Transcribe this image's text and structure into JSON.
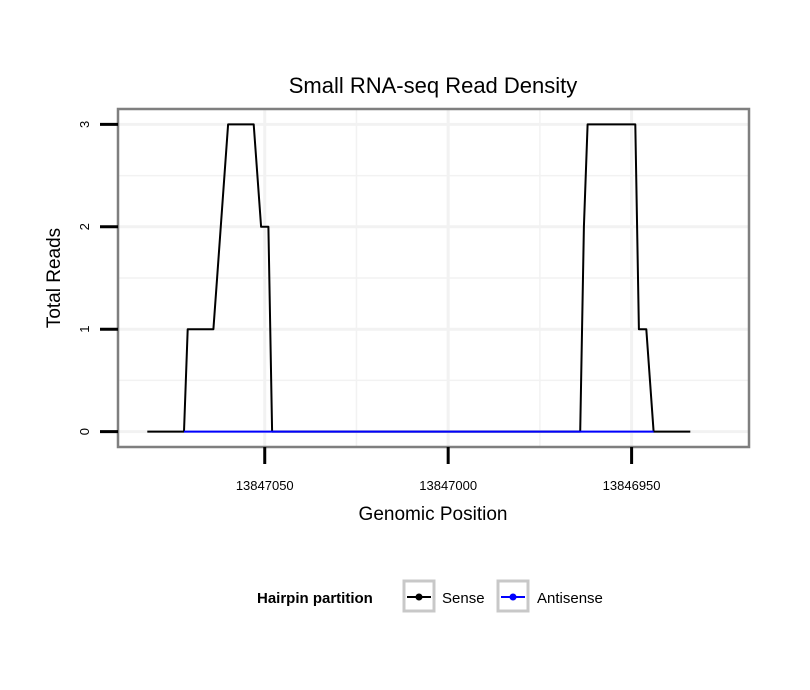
{
  "chart_data": {
    "type": "line",
    "title": "Small RNA-seq Read Density",
    "xlabel": "Genomic Position",
    "ylabel": "Total Reads",
    "x_reversed": true,
    "xlim": [
      13847090,
      13846918
    ],
    "ylim": [
      -0.15,
      3.15
    ],
    "x_ticks": [
      13847050,
      13847000,
      13846950
    ],
    "y_ticks": [
      0,
      1,
      2,
      3
    ],
    "x_minor_gridlines": [
      13847025,
      13846975
    ],
    "y_minor_gridlines": [
      0.5,
      1.5,
      2.5
    ],
    "grid": true,
    "series": [
      {
        "name": "Sense",
        "color": "#000000",
        "x": [
          13847082,
          13847072,
          13847071,
          13847064,
          13847063,
          13847060,
          13847059,
          13847053,
          13847051,
          13847049,
          13847048,
          13846964,
          13846963,
          13846962,
          13846960,
          13846949,
          13846948,
          13846946,
          13846944,
          13846934
        ],
        "y": [
          0,
          0,
          1,
          1,
          1.5,
          3,
          3,
          3,
          2,
          2,
          0,
          0,
          2,
          3,
          3,
          3,
          1,
          1,
          0,
          0
        ]
      },
      {
        "name": "Antisense",
        "color": "#0000ff",
        "x": [
          13847072,
          13847048,
          13846964,
          13846944
        ],
        "y": [
          0,
          0,
          0,
          0
        ]
      }
    ],
    "legend": {
      "title": "Hairpin partition",
      "position": "bottom",
      "entries": [
        "Sense",
        "Antisense"
      ]
    }
  }
}
